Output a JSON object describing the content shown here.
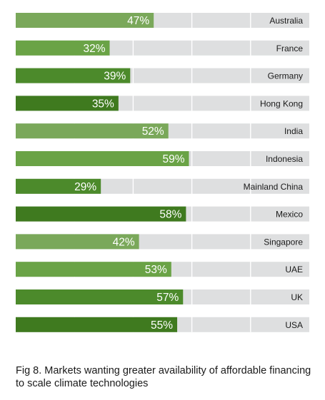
{
  "caption": "Fig 8. Markets wanting greater availability of affordable financing to scale climate technologies",
  "chart_data": {
    "type": "bar",
    "orientation": "horizontal",
    "categories": [
      "Australia",
      "France",
      "Germany",
      "Hong Kong",
      "India",
      "Indonesia",
      "Mainland China",
      "Mexico",
      "Singapore",
      "UAE",
      "UK",
      "USA"
    ],
    "values": [
      47,
      32,
      39,
      35,
      52,
      59,
      29,
      58,
      42,
      53,
      57,
      55
    ],
    "value_labels": [
      "47%",
      "32%",
      "39%",
      "35%",
      "52%",
      "59%",
      "29%",
      "58%",
      "42%",
      "53%",
      "57%",
      "55%"
    ],
    "bar_colors": [
      "#7aa85a",
      "#6aa346",
      "#4c8a2b",
      "#3f7a1f",
      "#7aa85a",
      "#6aa346",
      "#4c8a2b",
      "#3f7a1f",
      "#7aa85a",
      "#6aa346",
      "#4c8a2b",
      "#3f7a1f"
    ],
    "track_color": "#dedfe0",
    "label_color": "#ffffff",
    "xlim": [
      0,
      100
    ],
    "grid": true
  }
}
